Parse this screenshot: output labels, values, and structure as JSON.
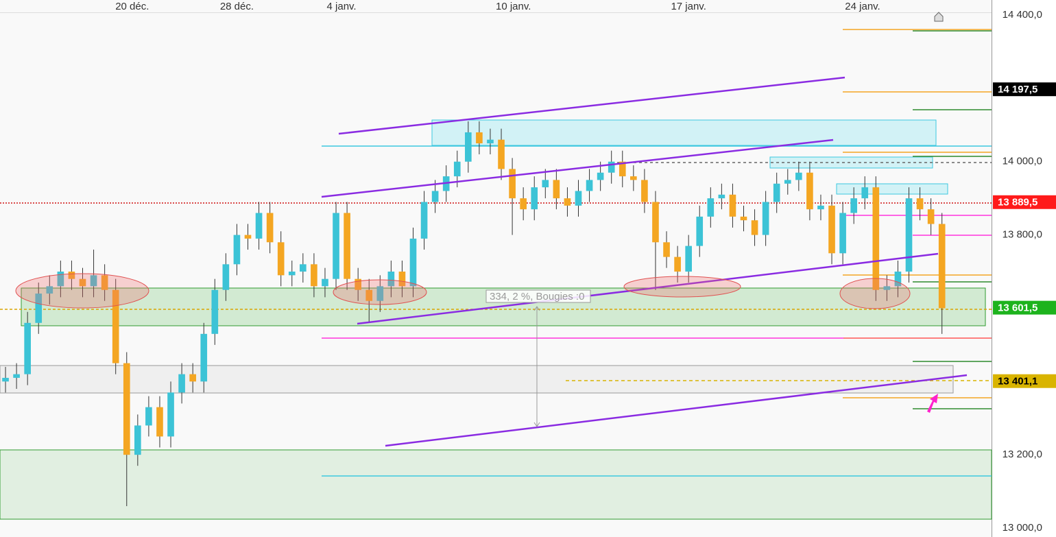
{
  "chart_data": {
    "type": "candlestick",
    "up_color": "#3cc3d6",
    "down_color": "#f4a622",
    "xlim": [
      0,
      90
    ],
    "xticks": [
      {
        "value": 12,
        "label": "20 déc."
      },
      {
        "value": 21.5,
        "label": "28 déc."
      },
      {
        "value": 31,
        "label": "4 janv."
      },
      {
        "value": 46.6,
        "label": "10 janv."
      },
      {
        "value": 62.5,
        "label": "17 janv."
      },
      {
        "value": 78.3,
        "label": "24 janv."
      }
    ],
    "ylim": [
      13000,
      14400
    ],
    "yticks": [
      {
        "value": 13000,
        "label": "13 000,0"
      },
      {
        "value": 13200,
        "label": "13 200,0"
      },
      {
        "value": 13800,
        "label": "13 800,0"
      },
      {
        "value": 14000,
        "label": "14 000,0"
      },
      {
        "value": 14400,
        "label": "14 400,0"
      }
    ],
    "open": [
      13400,
      13410,
      13420,
      13560,
      13640,
      13660,
      13700,
      13680,
      13660,
      13690,
      13650,
      13450,
      13200,
      13280,
      13330,
      13250,
      13370,
      13420,
      13400,
      13530,
      13650,
      13720,
      13800,
      13790,
      13860,
      13780,
      13690,
      13700,
      13720,
      13660,
      13680,
      13860,
      13680,
      13650,
      13620,
      13660,
      13700,
      13660,
      13790,
      13890,
      13920,
      13960,
      14000,
      14080,
      14050,
      14060,
      13980,
      13900,
      13870,
      13930,
      13950,
      13900,
      13880,
      13920,
      13950,
      13970,
      14000,
      13960,
      13950,
      13890,
      13780,
      13740,
      13700,
      13770,
      13850,
      13900,
      13910,
      13850,
      13840,
      13800,
      13890,
      13940,
      13950,
      13970,
      13870,
      13880,
      13750,
      13860,
      13900,
      13930,
      13650,
      13660,
      13700,
      13900,
      13870,
      13830
    ],
    "high": [
      13440,
      13450,
      13590,
      13670,
      13690,
      13730,
      13730,
      13710,
      13760,
      13720,
      13680,
      13480,
      13310,
      13360,
      13360,
      13400,
      13450,
      13450,
      13560,
      13680,
      13750,
      13830,
      13830,
      13890,
      13890,
      13810,
      13730,
      13750,
      13750,
      13710,
      13890,
      13890,
      13710,
      13680,
      13690,
      13730,
      13730,
      13820,
      13920,
      13950,
      13990,
      14030,
      14110,
      14110,
      14090,
      14090,
      14010,
      13930,
      13960,
      13980,
      13980,
      13930,
      13950,
      13980,
      14000,
      14030,
      14030,
      13990,
      13980,
      13920,
      13810,
      13770,
      13800,
      13880,
      13930,
      13940,
      13940,
      13880,
      13870,
      13920,
      13970,
      13980,
      14000,
      14000,
      13910,
      13910,
      13890,
      13930,
      13960,
      13960,
      13690,
      13730,
      13930,
      13930,
      13900,
      13860
    ],
    "low": [
      13370,
      13380,
      13390,
      13530,
      13610,
      13630,
      13650,
      13630,
      13630,
      13620,
      13420,
      13060,
      13170,
      13250,
      13220,
      13220,
      13340,
      13370,
      13370,
      13500,
      13620,
      13690,
      13760,
      13760,
      13750,
      13660,
      13660,
      13670,
      13630,
      13630,
      13650,
      13650,
      13620,
      13560,
      13590,
      13630,
      13630,
      13630,
      13760,
      13860,
      13890,
      13930,
      13970,
      14020,
      14020,
      13950,
      13800,
      13840,
      13840,
      13900,
      13870,
      13850,
      13850,
      13890,
      13920,
      13940,
      13930,
      13920,
      13860,
      13650,
      13710,
      13670,
      13670,
      13740,
      13820,
      13870,
      13820,
      13810,
      13770,
      13770,
      13860,
      13910,
      13920,
      13840,
      13840,
      13720,
      13720,
      13830,
      13870,
      13620,
      13620,
      13630,
      13670,
      13840,
      13800,
      13530
    ],
    "close": [
      13410,
      13420,
      13560,
      13640,
      13660,
      13700,
      13680,
      13660,
      13690,
      13650,
      13450,
      13200,
      13280,
      13330,
      13250,
      13370,
      13420,
      13400,
      13530,
      13650,
      13720,
      13800,
      13790,
      13860,
      13780,
      13690,
      13700,
      13720,
      13660,
      13680,
      13860,
      13680,
      13650,
      13620,
      13660,
      13700,
      13660,
      13790,
      13890,
      13920,
      13960,
      14000,
      14080,
      14050,
      14060,
      13980,
      13900,
      13870,
      13930,
      13950,
      13900,
      13880,
      13920,
      13950,
      13970,
      14000,
      13960,
      13950,
      13890,
      13780,
      13740,
      13700,
      13770,
      13850,
      13900,
      13910,
      13850,
      13840,
      13800,
      13890,
      13940,
      13950,
      13970,
      13870,
      13880,
      13750,
      13860,
      13900,
      13930,
      13650,
      13660,
      13700,
      13900,
      13870,
      13830,
      13600
    ],
    "price_labels": [
      {
        "value": 14197.5,
        "label": "14 197,5",
        "color": "#000000",
        "text_color": "#ffffff"
      },
      {
        "value": 13889.5,
        "label": "13 889,5",
        "color": "#ff1a1a",
        "text_color": "#ffffff"
      },
      {
        "value": 13601.5,
        "label": "13 601,5",
        "color": "#1db31d",
        "text_color": "#ffffff"
      },
      {
        "value": 13401.1,
        "label": "13 401,1",
        "color": "#d9b400",
        "text_color": "#000000"
      }
    ],
    "measure_label": "334, 2 %, Bougies :0"
  }
}
